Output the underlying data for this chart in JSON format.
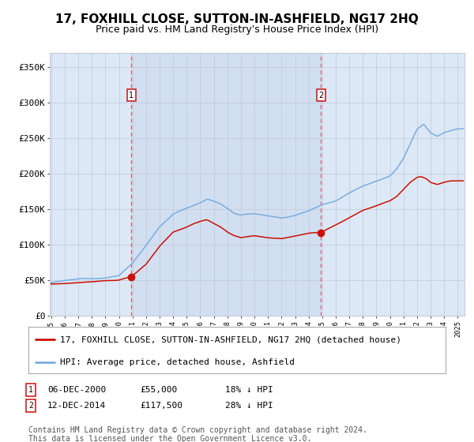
{
  "title": "17, FOXHILL CLOSE, SUTTON-IN-ASHFIELD, NG17 2HQ",
  "subtitle": "Price paid vs. HM Land Registry's House Price Index (HPI)",
  "background_color": "#ffffff",
  "plot_bg_color": "#dce8f5",
  "grid_color": "#c0c8d8",
  "ylim": [
    0,
    370000
  ],
  "yticks": [
    0,
    50000,
    100000,
    150000,
    200000,
    250000,
    300000,
    350000
  ],
  "ytick_labels": [
    "£0",
    "£50K",
    "£100K",
    "£150K",
    "£200K",
    "£250K",
    "£300K",
    "£350K"
  ],
  "xstart_year": 1995,
  "xend_year": 2025,
  "sale1_year": 2000.92,
  "sale1_price": 55000,
  "sale2_year": 2014.92,
  "sale2_price": 117500,
  "hpi_color": "#7aade0",
  "price_color": "#cc1100",
  "marker_color": "#cc1100",
  "dashed_line_color": "#dd4444",
  "highlight_color": "#c8d8ee",
  "legend_line1": "17, FOXHILL CLOSE, SUTTON-IN-ASHFIELD, NG17 2HQ (detached house)",
  "legend_line2": "HPI: Average price, detached house, Ashfield",
  "sale1_note_date": "06-DEC-2000",
  "sale1_note_price": "£55,000",
  "sale1_note_hpi": "18% ↓ HPI",
  "sale2_note_date": "12-DEC-2014",
  "sale2_note_price": "£117,500",
  "sale2_note_hpi": "28% ↓ HPI",
  "footnote": "Contains HM Land Registry data © Crown copyright and database right 2024.\nThis data is licensed under the Open Government Licence v3.0.",
  "title_fontsize": 11,
  "subtitle_fontsize": 9,
  "axis_fontsize": 8,
  "legend_fontsize": 8,
  "footnote_fontsize": 7
}
